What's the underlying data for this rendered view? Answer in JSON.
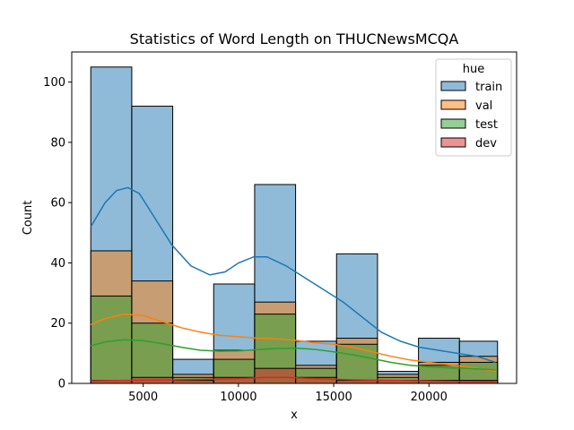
{
  "chart_data": {
    "type": "bar",
    "subtype": "stacked-histogram-with-kde",
    "title": "Statistics of Word Length on THUCNewsMCQA",
    "xlabel": "x",
    "ylabel": "Count",
    "xlim": [
      1250,
      24600
    ],
    "ylim": [
      0,
      110
    ],
    "xticks": [
      5000,
      10000,
      15000,
      20000
    ],
    "xtick_labels": [
      "5000",
      "10000",
      "15000",
      "20000"
    ],
    "yticks": [
      0,
      20,
      40,
      60,
      80,
      100
    ],
    "ytick_labels": [
      "0",
      "20",
      "40",
      "60",
      "80",
      "100"
    ],
    "bin_edges": [
      2250,
      4400,
      6550,
      8700,
      10850,
      13000,
      15150,
      17300,
      19450,
      21600,
      23600
    ],
    "legend": {
      "title": "hue",
      "position": "top-right"
    },
    "series": [
      {
        "name": "train",
        "color": "#1f77b4",
        "cumulative_top": [
          105,
          92,
          8,
          33,
          66,
          14,
          43,
          4,
          15,
          14
        ]
      },
      {
        "name": "val",
        "color": "#ff7f0e",
        "cumulative_top": [
          44,
          34,
          3,
          11,
          27,
          6,
          15,
          3,
          7,
          9
        ]
      },
      {
        "name": "test",
        "color": "#2ca02c",
        "cumulative_top": [
          29,
          20,
          2,
          8,
          23,
          5,
          13,
          2,
          6,
          7
        ]
      },
      {
        "name": "dev",
        "color": "#d62728",
        "cumulative_top": [
          1,
          2,
          1,
          2,
          5,
          2,
          1,
          1,
          1,
          1
        ]
      }
    ],
    "kde": [
      {
        "name": "train",
        "color": "#1f77b4",
        "x": [
          2250,
          3000,
          3600,
          4200,
          4800,
          5500,
          6500,
          7500,
          8500,
          9300,
          10000,
          10800,
          11500,
          12500,
          13500,
          14500,
          15500,
          16500,
          17500,
          18500,
          19500,
          20500,
          21500,
          22500,
          23500
        ],
        "y": [
          52,
          60,
          64,
          65,
          63,
          56,
          46,
          39,
          36,
          37,
          40,
          42,
          42,
          39,
          35,
          31,
          27,
          22,
          17,
          14,
          12,
          11,
          10,
          9,
          7
        ]
      },
      {
        "name": "val",
        "color": "#ff7f0e",
        "x": [
          2250,
          3000,
          4000,
          5000,
          6000,
          7000,
          8000,
          9000,
          10000,
          11000,
          12000,
          13000,
          14000,
          15000,
          16000,
          17000,
          18000,
          19000,
          20000,
          21000,
          22000,
          23500
        ],
        "y": [
          19.5,
          21.5,
          23,
          22.5,
          20.5,
          18.5,
          17,
          16,
          15.5,
          15,
          14.8,
          14.3,
          13.5,
          13,
          12,
          10.5,
          9,
          7.8,
          7,
          6.2,
          5.5,
          4
        ]
      },
      {
        "name": "test",
        "color": "#2ca02c",
        "x": [
          2250,
          3000,
          4000,
          5000,
          6000,
          7000,
          8000,
          9000,
          10000,
          11000,
          12000,
          13000,
          14000,
          15000,
          16000,
          17000,
          18000,
          19000,
          20000,
          21000,
          22000,
          23500
        ],
        "y": [
          12.5,
          13.8,
          14.5,
          14.2,
          13.2,
          12,
          11,
          10.7,
          10.8,
          11.2,
          11.6,
          11.7,
          11.3,
          10.5,
          9.5,
          8.3,
          7,
          6,
          5.5,
          5.2,
          5,
          4.5
        ]
      },
      {
        "name": "dev",
        "color": "#d62728",
        "x": [
          2250,
          4000,
          6000,
          8000,
          10000,
          11500,
          12500,
          14000,
          16000,
          18000,
          20000,
          22000,
          23500
        ],
        "y": [
          0.8,
          1,
          1.1,
          1.3,
          1.6,
          2,
          2,
          1.6,
          1.2,
          1,
          0.8,
          0.6,
          0.5
        ]
      }
    ]
  }
}
